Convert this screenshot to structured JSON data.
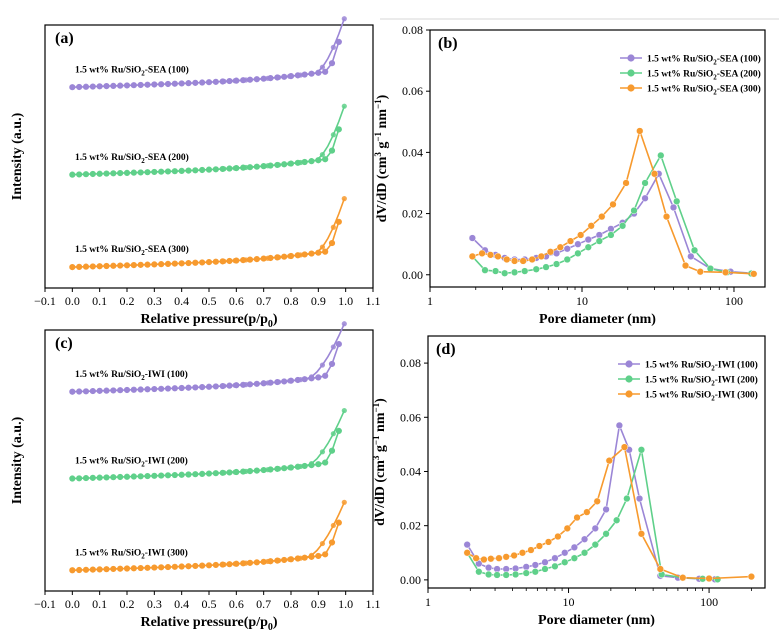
{
  "colors": {
    "purple": "#9b86d6",
    "green": "#5fd08a",
    "orange": "#f79a2e"
  },
  "chart_data": [
    {
      "type": "line",
      "panel": "(a)",
      "xlabel": "Relative pressure(p/p",
      "xlabel_sub": "0",
      "xlabel_end": ")",
      "ylabel": "Intensity (a.u.)",
      "xlim": [
        -0.1,
        1.1
      ],
      "xticks": [
        "−0.1",
        "0.0",
        "0.1",
        "0.2",
        "0.3",
        "0.4",
        "0.5",
        "0.6",
        "0.7",
        "0.8",
        "0.9",
        "1.0",
        "1.1"
      ],
      "curve_family": "sea",
      "series": [
        {
          "label": "1.5 wt% Ru/SiO",
          "sub": "2",
          "tail": "-SEA (100)",
          "color": "purple",
          "offset": 0.72
        },
        {
          "label": "1.5 wt% Ru/SiO",
          "sub": "2",
          "tail": "-SEA (200)",
          "color": "green",
          "offset": 0.37
        },
        {
          "label": "1.5 wt% Ru/SiO",
          "sub": "2",
          "tail": "-SEA (300)",
          "color": "orange",
          "offset": 0.0
        }
      ]
    },
    {
      "type": "line",
      "panel": "(b)",
      "xlabel": "Pore diameter (nm)",
      "ylabel": "dV/dD (cm",
      "ylabel_sup": "3",
      "ylabel_mid": " g",
      "ylabel_sup2": "−1",
      "ylabel_mid2": " nm",
      "ylabel_sup3": "−1",
      "ylabel_end": ")",
      "xscale": "log",
      "xlim": [
        1,
        160
      ],
      "ylim": [
        -0.004,
        0.08
      ],
      "xticks": [
        "1",
        "10",
        "100"
      ],
      "yticks": [
        "0.00",
        "0.02",
        "0.04",
        "0.06",
        "0.08"
      ],
      "legend_placement": "top-right",
      "series": [
        {
          "name": "1.5 wt% Ru/SiO",
          "sub": "2",
          "tail": "-SEA (100)",
          "color": "purple",
          "x": [
            1.9,
            2.3,
            2.7,
            3.1,
            3.6,
            4.2,
            5.0,
            5.8,
            6.8,
            8.0,
            9.4,
            11.0,
            13.0,
            15.5,
            18.5,
            22,
            26,
            32,
            40,
            52,
            70,
            95,
            130
          ],
          "y": [
            0.012,
            0.008,
            0.0065,
            0.0055,
            0.005,
            0.005,
            0.0055,
            0.006,
            0.007,
            0.0085,
            0.01,
            0.0115,
            0.013,
            0.015,
            0.017,
            0.02,
            0.025,
            0.033,
            0.022,
            0.006,
            0.002,
            0.001,
            0.0005
          ]
        },
        {
          "name": "1.5 wt% Ru/SiO",
          "sub": "2",
          "tail": "-SEA (200)",
          "color": "green",
          "x": [
            1.9,
            2.3,
            2.7,
            3.1,
            3.6,
            4.2,
            5.0,
            5.8,
            6.8,
            8.0,
            9.4,
            11.0,
            13.0,
            15.5,
            18.5,
            22,
            26,
            33,
            42,
            55,
            70,
            90,
            130
          ],
          "y": [
            0.006,
            0.0015,
            0.0012,
            0.0005,
            0.0008,
            0.0012,
            0.0018,
            0.0025,
            0.0035,
            0.005,
            0.007,
            0.009,
            0.011,
            0.013,
            0.016,
            0.021,
            0.03,
            0.039,
            0.024,
            0.008,
            0.002,
            0.0008,
            0.0004
          ]
        },
        {
          "name": "1.5 wt% Ru/SiO",
          "sub": "2",
          "tail": "-SEA (300)",
          "color": "orange",
          "x": [
            1.9,
            2.2,
            2.5,
            2.8,
            3.2,
            3.6,
            4.1,
            4.7,
            5.4,
            6.2,
            7.2,
            8.4,
            9.8,
            11.5,
            13.5,
            16,
            19.5,
            24,
            30,
            36,
            48,
            60,
            88,
            135
          ],
          "y": [
            0.006,
            0.007,
            0.0065,
            0.006,
            0.005,
            0.0045,
            0.0045,
            0.005,
            0.006,
            0.0075,
            0.009,
            0.011,
            0.013,
            0.016,
            0.019,
            0.023,
            0.03,
            0.047,
            0.033,
            0.019,
            0.003,
            0.001,
            0.0008,
            0.0003
          ]
        }
      ]
    },
    {
      "type": "line",
      "panel": "(c)",
      "xlabel": "Relative pressure(p/p",
      "xlabel_sub": "0",
      "xlabel_end": ")",
      "ylabel": "Intensity (a.u.)",
      "xlim": [
        -0.1,
        1.1
      ],
      "xticks": [
        "−0.1",
        "0.0",
        "0.1",
        "0.2",
        "0.3",
        "0.4",
        "0.5",
        "0.6",
        "0.7",
        "0.8",
        "0.9",
        "1.0",
        "1.1"
      ],
      "curve_family": "iwi",
      "series": [
        {
          "label": "1.5 wt% Ru/SiO",
          "sub": "2",
          "tail": "-IWI (100)",
          "color": "purple",
          "offset": 0.72
        },
        {
          "label": "1.5 wt% Ru/SiO",
          "sub": "2",
          "tail": "-IWI (200)",
          "color": "green",
          "offset": 0.37
        },
        {
          "label": "1.5 wt% Ru/SiO",
          "sub": "2",
          "tail": "-IWI (300)",
          "color": "orange",
          "offset": 0.0
        }
      ]
    },
    {
      "type": "line",
      "panel": "(d)",
      "xlabel": "Pore diameter (nm)",
      "ylabel": "dV/dD (cm",
      "ylabel_sup": "3",
      "ylabel_mid": " g",
      "ylabel_sup2": "−1",
      "ylabel_mid2": " nm",
      "ylabel_sup3": "−1",
      "ylabel_end": ")",
      "xscale": "log",
      "xlim": [
        1,
        250
      ],
      "ylim": [
        -0.003,
        0.09
      ],
      "xticks": [
        "1",
        "10",
        "100"
      ],
      "yticks": [
        "0.00",
        "0.02",
        "0.04",
        "0.06",
        "0.08"
      ],
      "legend_placement": "top-right",
      "series": [
        {
          "name": "1.5 wt% Ru/SiO",
          "sub": "2",
          "tail": "-IWI (100)",
          "color": "purple",
          "x": [
            1.9,
            2.3,
            2.7,
            3.1,
            3.6,
            4.2,
            5.0,
            5.8,
            6.8,
            8.0,
            9.4,
            11.0,
            13.0,
            15.5,
            18.5,
            23,
            27,
            32,
            45,
            60,
            85,
            110
          ],
          "y": [
            0.013,
            0.006,
            0.0045,
            0.004,
            0.004,
            0.0042,
            0.0048,
            0.0055,
            0.0065,
            0.008,
            0.01,
            0.012,
            0.015,
            0.019,
            0.026,
            0.057,
            0.048,
            0.03,
            0.0015,
            0.0008,
            0.0004,
            0.0002
          ]
        },
        {
          "name": "1.5 wt% Ru/SiO",
          "sub": "2",
          "tail": "-IWI (200)",
          "color": "green",
          "x": [
            1.9,
            2.3,
            2.7,
            3.1,
            3.6,
            4.2,
            5.0,
            5.8,
            6.8,
            8.0,
            9.4,
            11.0,
            13.0,
            15.5,
            18.5,
            22,
            26,
            33,
            46,
            65,
            90,
            115
          ],
          "y": [
            0.01,
            0.003,
            0.002,
            0.0018,
            0.0018,
            0.002,
            0.0025,
            0.003,
            0.004,
            0.005,
            0.0065,
            0.008,
            0.01,
            0.013,
            0.017,
            0.022,
            0.03,
            0.048,
            0.002,
            0.0008,
            0.0004,
            0.0002
          ]
        },
        {
          "name": "1.5 wt% Ru/SiO",
          "sub": "2",
          "tail": "-IWI (300)",
          "color": "orange",
          "x": [
            1.9,
            2.2,
            2.5,
            2.8,
            3.2,
            3.6,
            4.1,
            4.7,
            5.4,
            6.2,
            7.2,
            8.4,
            9.8,
            11.5,
            13.5,
            16,
            19.5,
            25,
            33,
            45,
            65,
            100,
            200
          ],
          "y": [
            0.01,
            0.008,
            0.0075,
            0.0078,
            0.008,
            0.0085,
            0.009,
            0.01,
            0.011,
            0.0125,
            0.014,
            0.016,
            0.019,
            0.023,
            0.025,
            0.029,
            0.044,
            0.049,
            0.017,
            0.004,
            0.0008,
            0.0005,
            0.0012
          ]
        }
      ]
    }
  ]
}
